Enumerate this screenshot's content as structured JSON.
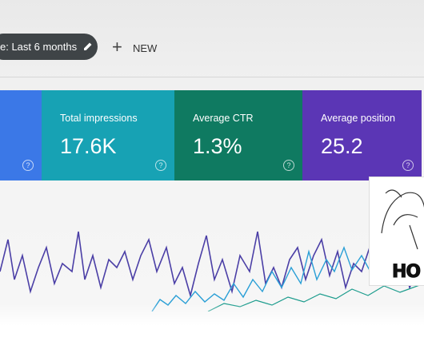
{
  "toolbar": {
    "filter_chip": "e: Last 6 months",
    "new_button": "NEW"
  },
  "cards": [
    {
      "label": "Total impressions",
      "value": "17.6K"
    },
    {
      "label": "Average CTR",
      "value": "1.3%"
    },
    {
      "label": "Average position",
      "value": "25.2"
    }
  ],
  "overlay": {
    "caption": "HO"
  }
}
